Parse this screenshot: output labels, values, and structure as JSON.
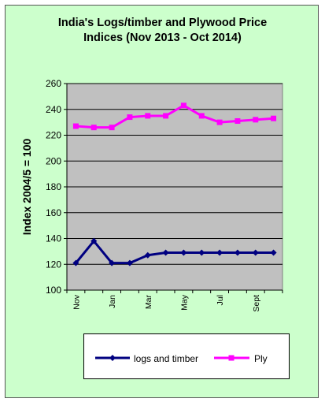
{
  "chart_data": {
    "type": "line",
    "title": "India's Logs/timber and Plywood Price\nIndices (Nov 2013 - Oct 2014)",
    "ylabel": "Index 2004/5 = 100",
    "xlabel": "",
    "ylim": [
      100,
      260
    ],
    "yticks": [
      100,
      120,
      140,
      160,
      180,
      200,
      220,
      240,
      260
    ],
    "x_tick_labels": [
      "Nov",
      "Jan",
      "Mar",
      "May",
      "Jul",
      "Sept"
    ],
    "grid": true,
    "legend_position": "bottom",
    "series": [
      {
        "name": "logs and timber",
        "color": "#000080",
        "marker": "diamond",
        "values": [
          121,
          138,
          121,
          121,
          127,
          129,
          129,
          129,
          129,
          129,
          129,
          129
        ]
      },
      {
        "name": "Ply",
        "color": "#ff00ff",
        "marker": "square",
        "values": [
          227,
          226,
          226,
          234,
          235,
          235,
          243,
          235,
          230,
          231,
          232,
          233
        ]
      }
    ],
    "colors": {
      "frame_background": "#ccffcc",
      "plot_background": "#c0c0c0"
    }
  }
}
